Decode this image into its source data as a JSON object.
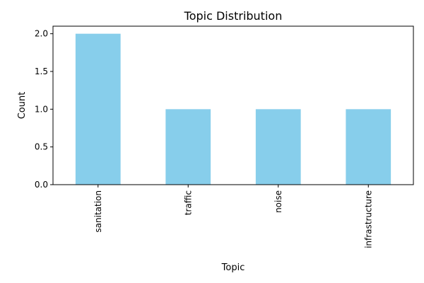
{
  "chart_data": {
    "type": "bar",
    "title": "Topic Distribution",
    "xlabel": "Topic",
    "ylabel": "Count",
    "categories": [
      "sanitation",
      "traffic",
      "noise",
      "infrastructure"
    ],
    "values": [
      2,
      1,
      1,
      1
    ],
    "ylim": [
      0,
      2.1
    ],
    "yticks": [
      0.0,
      0.5,
      1.0,
      1.5,
      2.0
    ],
    "ytick_labels": [
      "0.0",
      "0.5",
      "1.0",
      "1.5",
      "2.0"
    ],
    "grid": false,
    "legend": "none",
    "colors": {
      "bar": "#87ceeb",
      "axis": "#000000",
      "background": "#ffffff"
    }
  }
}
